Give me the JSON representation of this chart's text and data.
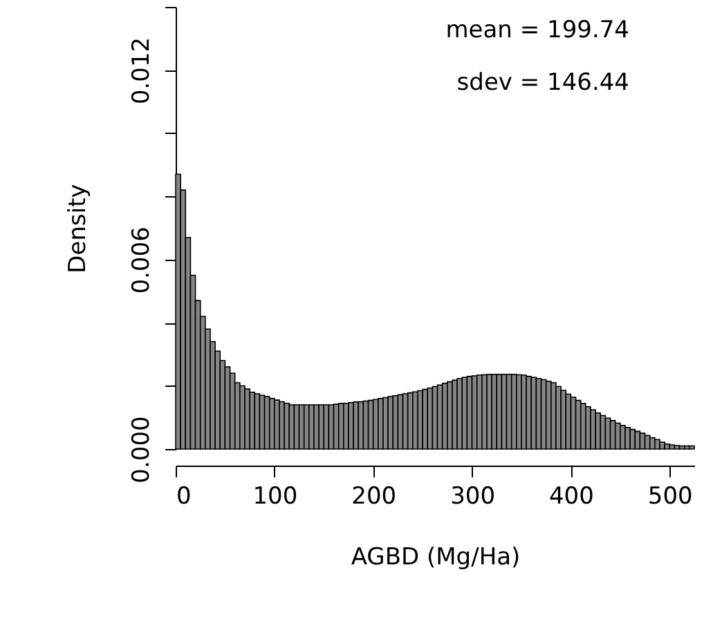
{
  "chart_data": {
    "type": "histogram",
    "xlabel": "AGBD (Mg/Ha)",
    "ylabel": "Density",
    "annotations": [
      "mean = 199.74",
      "sdev = 146.44"
    ],
    "color": "#858585",
    "grid": false,
    "xlim": [
      0,
      525
    ],
    "xticks": [
      0,
      100,
      200,
      300,
      400,
      500
    ],
    "ylim": [
      0,
      0.014
    ],
    "yticks": [
      {
        "value": 0,
        "label": "0.000"
      },
      {
        "value": 0.002,
        "label": null
      },
      {
        "value": 0.004,
        "label": null
      },
      {
        "value": 0.006,
        "label": "0.006"
      },
      {
        "value": 0.008,
        "label": null
      },
      {
        "value": 0.01,
        "label": null
      },
      {
        "value": 0.012,
        "label": "0.012"
      },
      {
        "value": 0.014,
        "label": null
      }
    ],
    "bins": [
      0,
      5,
      10,
      15,
      20,
      25,
      30,
      35,
      40,
      45,
      50,
      55,
      60,
      65,
      70,
      75,
      80,
      85,
      90,
      95,
      100,
      105,
      110,
      115,
      120,
      125,
      130,
      135,
      140,
      145,
      150,
      155,
      160,
      165,
      170,
      175,
      180,
      185,
      190,
      195,
      200,
      205,
      210,
      215,
      220,
      225,
      230,
      235,
      240,
      245,
      250,
      255,
      260,
      265,
      270,
      275,
      280,
      285,
      290,
      295,
      300,
      305,
      310,
      315,
      320,
      325,
      330,
      335,
      340,
      345,
      350,
      355,
      360,
      365,
      370,
      375,
      380,
      385,
      390,
      395,
      400,
      405,
      410,
      415,
      420,
      425,
      430,
      435,
      440,
      445,
      450,
      455,
      460,
      465,
      470,
      475,
      480,
      485,
      490,
      495,
      500,
      505,
      510,
      515,
      520,
      525
    ],
    "values": [
      0.0087,
      0.0082,
      0.0067,
      0.0055,
      0.0047,
      0.0042,
      0.0038,
      0.0034,
      0.0031,
      0.0028,
      0.0026,
      0.0024,
      0.0021,
      0.002,
      0.0019,
      0.0018,
      0.00175,
      0.0017,
      0.00166,
      0.0016,
      0.00155,
      0.0015,
      0.00145,
      0.0014,
      0.0014,
      0.0014,
      0.0014,
      0.0014,
      0.0014,
      0.0014,
      0.0014,
      0.0014,
      0.00142,
      0.00144,
      0.00145,
      0.00147,
      0.00149,
      0.0015,
      0.00152,
      0.00154,
      0.00157,
      0.0016,
      0.00163,
      0.00166,
      0.00169,
      0.00172,
      0.00175,
      0.00178,
      0.00181,
      0.00185,
      0.00189,
      0.00193,
      0.00198,
      0.00203,
      0.00208,
      0.00213,
      0.00218,
      0.00223,
      0.00227,
      0.0023,
      0.00232,
      0.00234,
      0.00235,
      0.00236,
      0.00236,
      0.00236,
      0.00236,
      0.00236,
      0.00236,
      0.00235,
      0.00234,
      0.0023,
      0.00227,
      0.00223,
      0.0022,
      0.00214,
      0.0021,
      0.00198,
      0.00186,
      0.00174,
      0.00164,
      0.00154,
      0.00144,
      0.00134,
      0.00124,
      0.00114,
      0.00106,
      0.00098,
      0.0009,
      0.00082,
      0.00075,
      0.00068,
      0.00062,
      0.00056,
      0.0005,
      0.00043,
      0.00036,
      0.0003,
      0.00022,
      0.00016,
      0.00013,
      0.00011,
      0.0001,
      0.0001,
      0.0001
    ]
  }
}
